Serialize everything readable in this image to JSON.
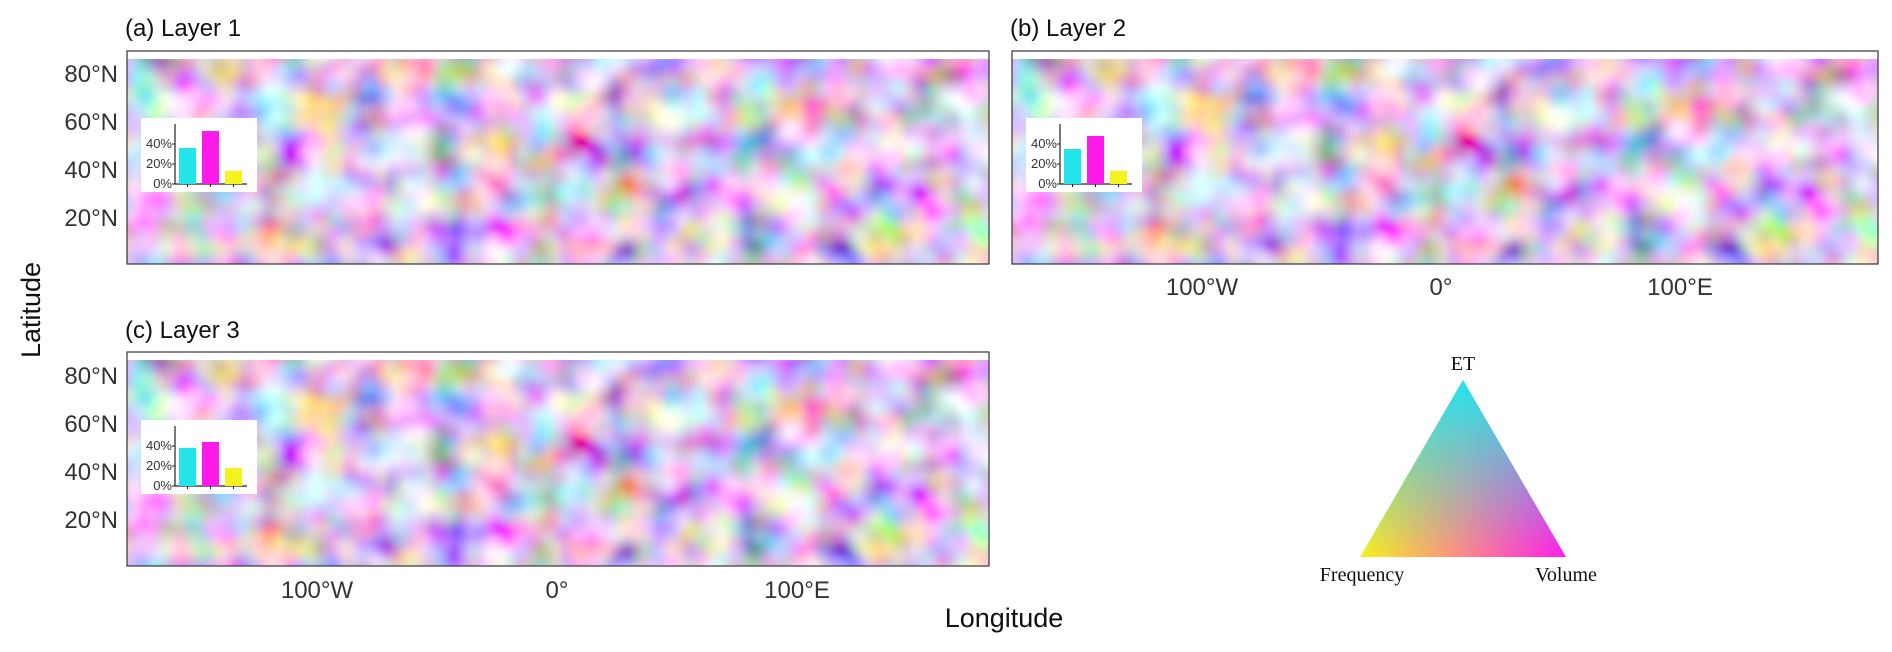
{
  "axes": {
    "xlabel": "Longitude",
    "ylabel": "Latitude",
    "lat_ticks": [
      "80°N",
      "60°N",
      "40°N",
      "20°N"
    ],
    "lon_ticks": [
      "100°W",
      "0°",
      "100°E"
    ]
  },
  "panels": [
    {
      "title": "(a) Layer 1",
      "inset": {
        "ticks": [
          "40%",
          "20%",
          "0%"
        ],
        "values": [
          36,
          53,
          13
        ],
        "colors": [
          "#22e5ec",
          "#ff1aec",
          "#f5f21e"
        ]
      }
    },
    {
      "title": "(b) Layer 2",
      "inset": {
        "ticks": [
          "40%",
          "20%",
          "0%"
        ],
        "values": [
          35,
          48,
          13
        ],
        "colors": [
          "#22e5ec",
          "#ff1aec",
          "#f5f21e"
        ]
      }
    },
    {
      "title": "(c) Layer 3",
      "inset": {
        "ticks": [
          "40%",
          "20%",
          "0%"
        ],
        "values": [
          38,
          44,
          18
        ],
        "colors": [
          "#22e5ec",
          "#ff1aec",
          "#f5f21e"
        ]
      }
    }
  ],
  "ternary_legend": {
    "top": "ET",
    "left": "Frequency",
    "right": "Volume",
    "colors": {
      "top": "#22e5ec",
      "left": "#f5f21e",
      "right": "#ff1aec"
    }
  }
}
